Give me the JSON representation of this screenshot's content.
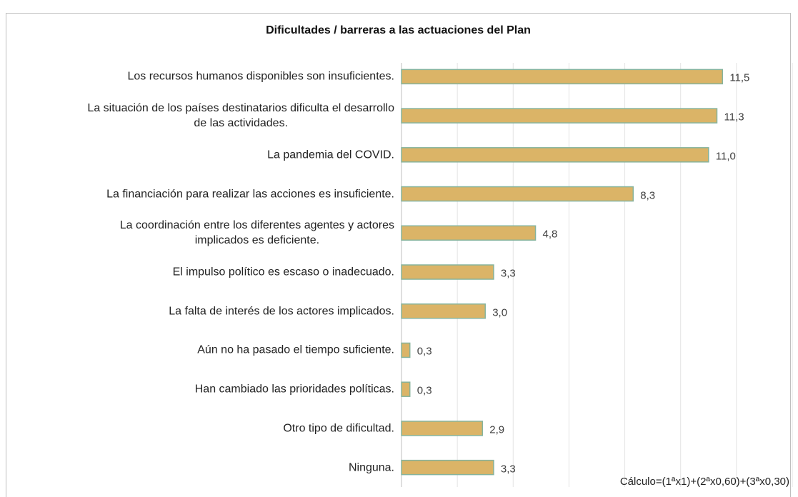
{
  "chart_data": {
    "type": "bar",
    "orientation": "horizontal",
    "title": "Dificultades / barreras a las actuaciones del Plan",
    "categories": [
      "Los recursos humanos disponibles son insuficientes.",
      "La situación de los países destinatarios dificulta el desarrollo\nde las actividades.",
      "La pandemia del COVID.",
      "La financiación para realizar las acciones es insuficiente.",
      "La coordinación entre los diferentes agentes y actores\nimplicados es deficiente.",
      "El impulso político es escaso o inadecuado.",
      "La falta de interés de los actores implicados.",
      "Aún no ha pasado el tiempo suficiente.",
      "Han cambiado las prioridades políticas.",
      "Otro tipo de dificultad.",
      "Ninguna."
    ],
    "values": [
      11.5,
      11.3,
      11.0,
      8.3,
      4.8,
      3.3,
      3.0,
      0.3,
      0.3,
      2.9,
      3.3
    ],
    "value_labels": [
      "11,5",
      "11,3",
      "11,0",
      "8,3",
      "4,8",
      "3,3",
      "3,0",
      "0,3",
      "0,3",
      "2,9",
      "3,3"
    ],
    "color": "#dbb467",
    "edge_color": "#86b39c",
    "xlim": [
      0,
      14
    ],
    "xticks": [
      0,
      2,
      4,
      6,
      8,
      10,
      12,
      14
    ],
    "grid": true,
    "annotation": "Cálculo=(1ªx1)+(2ªx0,60)+(3ªx0,30)"
  }
}
